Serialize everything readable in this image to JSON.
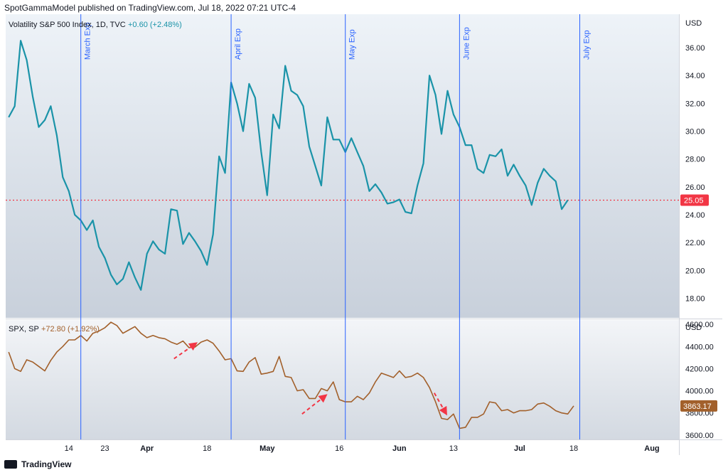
{
  "header": {
    "text": "SpotGammaModel published on TradingView.com, Jul 18, 2022 07:21 UTC-4"
  },
  "footer": {
    "brand": "TradingView"
  },
  "chart_data": [
    {
      "type": "line",
      "title": "Volatility S&P 500 Index, 1D, TVC",
      "change": "+0.60 (+2.48%)",
      "currency": "USD",
      "line_color": "#1a93a8",
      "ylim": [
        16.6,
        38.4
      ],
      "y_ticks": [
        "18.00",
        "20.00",
        "22.00",
        "24.00",
        "26.00",
        "28.00",
        "30.00",
        "32.00",
        "34.00",
        "36.00"
      ],
      "last_value": "25.05",
      "last_value_color": "#f23645",
      "reference_line": 25.05,
      "events": [
        {
          "label": "March Exp",
          "x": 12
        },
        {
          "label": "April Exp",
          "x": 37
        },
        {
          "label": "May Exp",
          "x": 56
        },
        {
          "label": "June Exp",
          "x": 75
        },
        {
          "label": "July Exp",
          "x": 95
        }
      ],
      "values": [
        31.0,
        31.8,
        36.5,
        35.1,
        32.5,
        30.3,
        30.8,
        31.8,
        29.7,
        26.7,
        25.7,
        24.0,
        23.6,
        22.9,
        23.6,
        21.7,
        20.9,
        19.7,
        19.0,
        19.4,
        20.6,
        19.5,
        18.6,
        21.2,
        22.1,
        21.5,
        21.2,
        24.4,
        24.3,
        21.9,
        22.7,
        22.1,
        21.4,
        20.4,
        22.6,
        28.2,
        27.0,
        33.5,
        32.0,
        30.0,
        33.4,
        32.4,
        28.5,
        25.4,
        31.2,
        30.2,
        34.7,
        32.9,
        32.6,
        31.8,
        28.9,
        27.5,
        26.1,
        31.0,
        29.4,
        29.4,
        28.5,
        29.5,
        28.5,
        27.5,
        25.7,
        26.2,
        25.6,
        24.8,
        24.9,
        25.1,
        24.2,
        24.1,
        26.1,
        27.7,
        34.0,
        32.6,
        29.8,
        32.9,
        31.2,
        30.3,
        29.0,
        29.0,
        27.3,
        27.0,
        28.3,
        28.2,
        28.7,
        26.8,
        27.6,
        26.8,
        26.1,
        24.7,
        26.3,
        27.3,
        26.8,
        26.4,
        24.4,
        25.05
      ]
    },
    {
      "type": "line",
      "title": "SPX, SP",
      "change": "+72.80 (+1.92%)",
      "currency": "USD",
      "line_color": "#a2602b",
      "ylim": [
        3560,
        4640
      ],
      "y_ticks": [
        "3600.00",
        "3800.00",
        "4000.00",
        "4200.00",
        "4400.00",
        "4600.00"
      ],
      "last_value": "3863.17",
      "last_value_color": "#a2602b",
      "values": [
        4350,
        4200,
        4175,
        4280,
        4260,
        4220,
        4180,
        4275,
        4350,
        4400,
        4460,
        4460,
        4500,
        4450,
        4520,
        4540,
        4570,
        4620,
        4590,
        4520,
        4550,
        4580,
        4520,
        4480,
        4500,
        4480,
        4470,
        4440,
        4420,
        4450,
        4390,
        4395,
        4440,
        4460,
        4430,
        4360,
        4280,
        4290,
        4180,
        4175,
        4260,
        4300,
        4150,
        4160,
        4175,
        4310,
        4130,
        4120,
        4000,
        4010,
        3930,
        3930,
        4020,
        4000,
        4080,
        3920,
        3900,
        3900,
        3950,
        3920,
        3980,
        4080,
        4160,
        4140,
        4120,
        4180,
        4120,
        4130,
        4160,
        4120,
        4030,
        3900,
        3750,
        3740,
        3790,
        3660,
        3670,
        3760,
        3760,
        3790,
        3900,
        3890,
        3820,
        3830,
        3800,
        3820,
        3820,
        3830,
        3880,
        3890,
        3860,
        3820,
        3800,
        3790,
        3863.17
      ]
    }
  ],
  "x_axis": {
    "ticks": [
      {
        "label": "14",
        "x": 10
      },
      {
        "label": "23",
        "x": 16
      },
      {
        "label": "Apr",
        "x": 23
      },
      {
        "label": "18",
        "x": 33
      },
      {
        "label": "May",
        "x": 43
      },
      {
        "label": "16",
        "x": 55
      },
      {
        "label": "Jun",
        "x": 65
      },
      {
        "label": "13",
        "x": 74
      },
      {
        "label": "Jul",
        "x": 85
      },
      {
        "label": "18",
        "x": 94
      },
      {
        "label": "Aug",
        "x": 107
      }
    ]
  },
  "annotations": [
    {
      "type": "arrow",
      "color": "#f23645"
    },
    {
      "type": "arrow",
      "color": "#f23645"
    },
    {
      "type": "arrow",
      "color": "#f23645"
    }
  ]
}
